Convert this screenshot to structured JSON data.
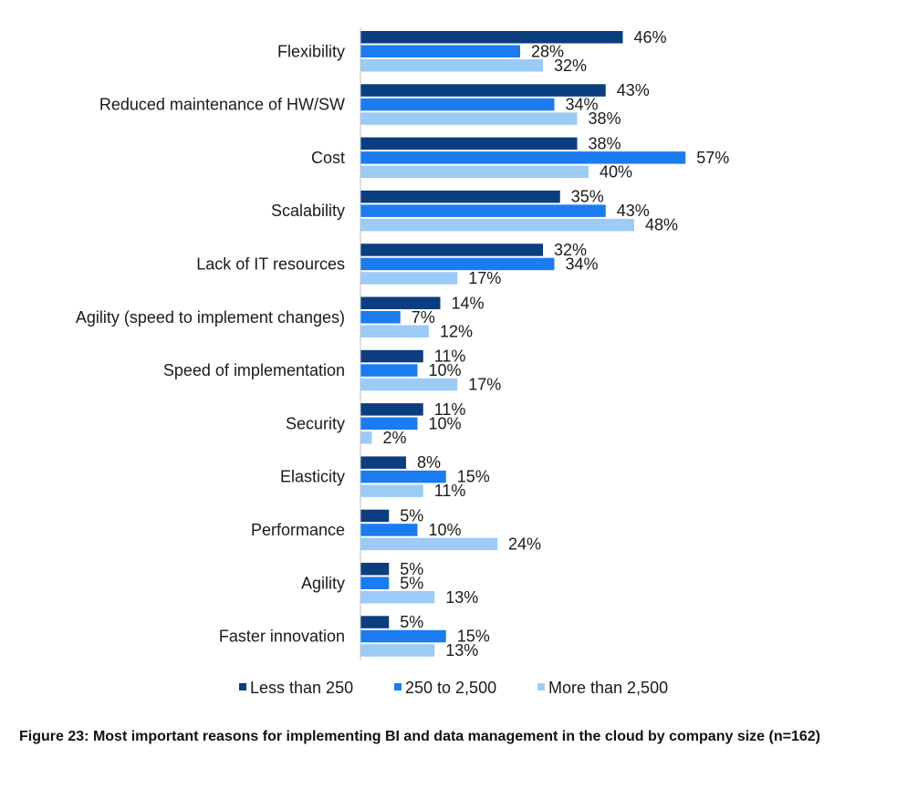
{
  "chart_data": {
    "type": "bar",
    "orientation": "horizontal",
    "categories": [
      "Flexibility",
      "Reduced maintenance of HW/SW",
      "Cost",
      "Scalability",
      "Lack of IT resources",
      "Agility (speed to implement changes)",
      "Speed of implementation",
      "Security",
      "Elasticity",
      "Performance",
      "Agility",
      "Faster innovation"
    ],
    "series": [
      {
        "name": "Less than 250",
        "color": "#0c3d7e",
        "values": [
          46,
          43,
          38,
          35,
          32,
          14,
          11,
          11,
          8,
          5,
          5,
          5
        ]
      },
      {
        "name": "250 to 2,500",
        "color": "#1a7cf0",
        "values": [
          28,
          34,
          57,
          43,
          34,
          7,
          10,
          10,
          15,
          10,
          5,
          15
        ]
      },
      {
        "name": "More than 2,500",
        "color": "#9ccbf6",
        "values": [
          32,
          38,
          40,
          48,
          17,
          12,
          17,
          2,
          11,
          24,
          13,
          13
        ]
      }
    ],
    "value_suffix": "%",
    "xlim": [
      0,
      100
    ],
    "grid": false,
    "legend_position": "bottom",
    "caption": "Figure 23: Most important reasons for implementing BI and data management in the cloud by company size (n=162)"
  }
}
